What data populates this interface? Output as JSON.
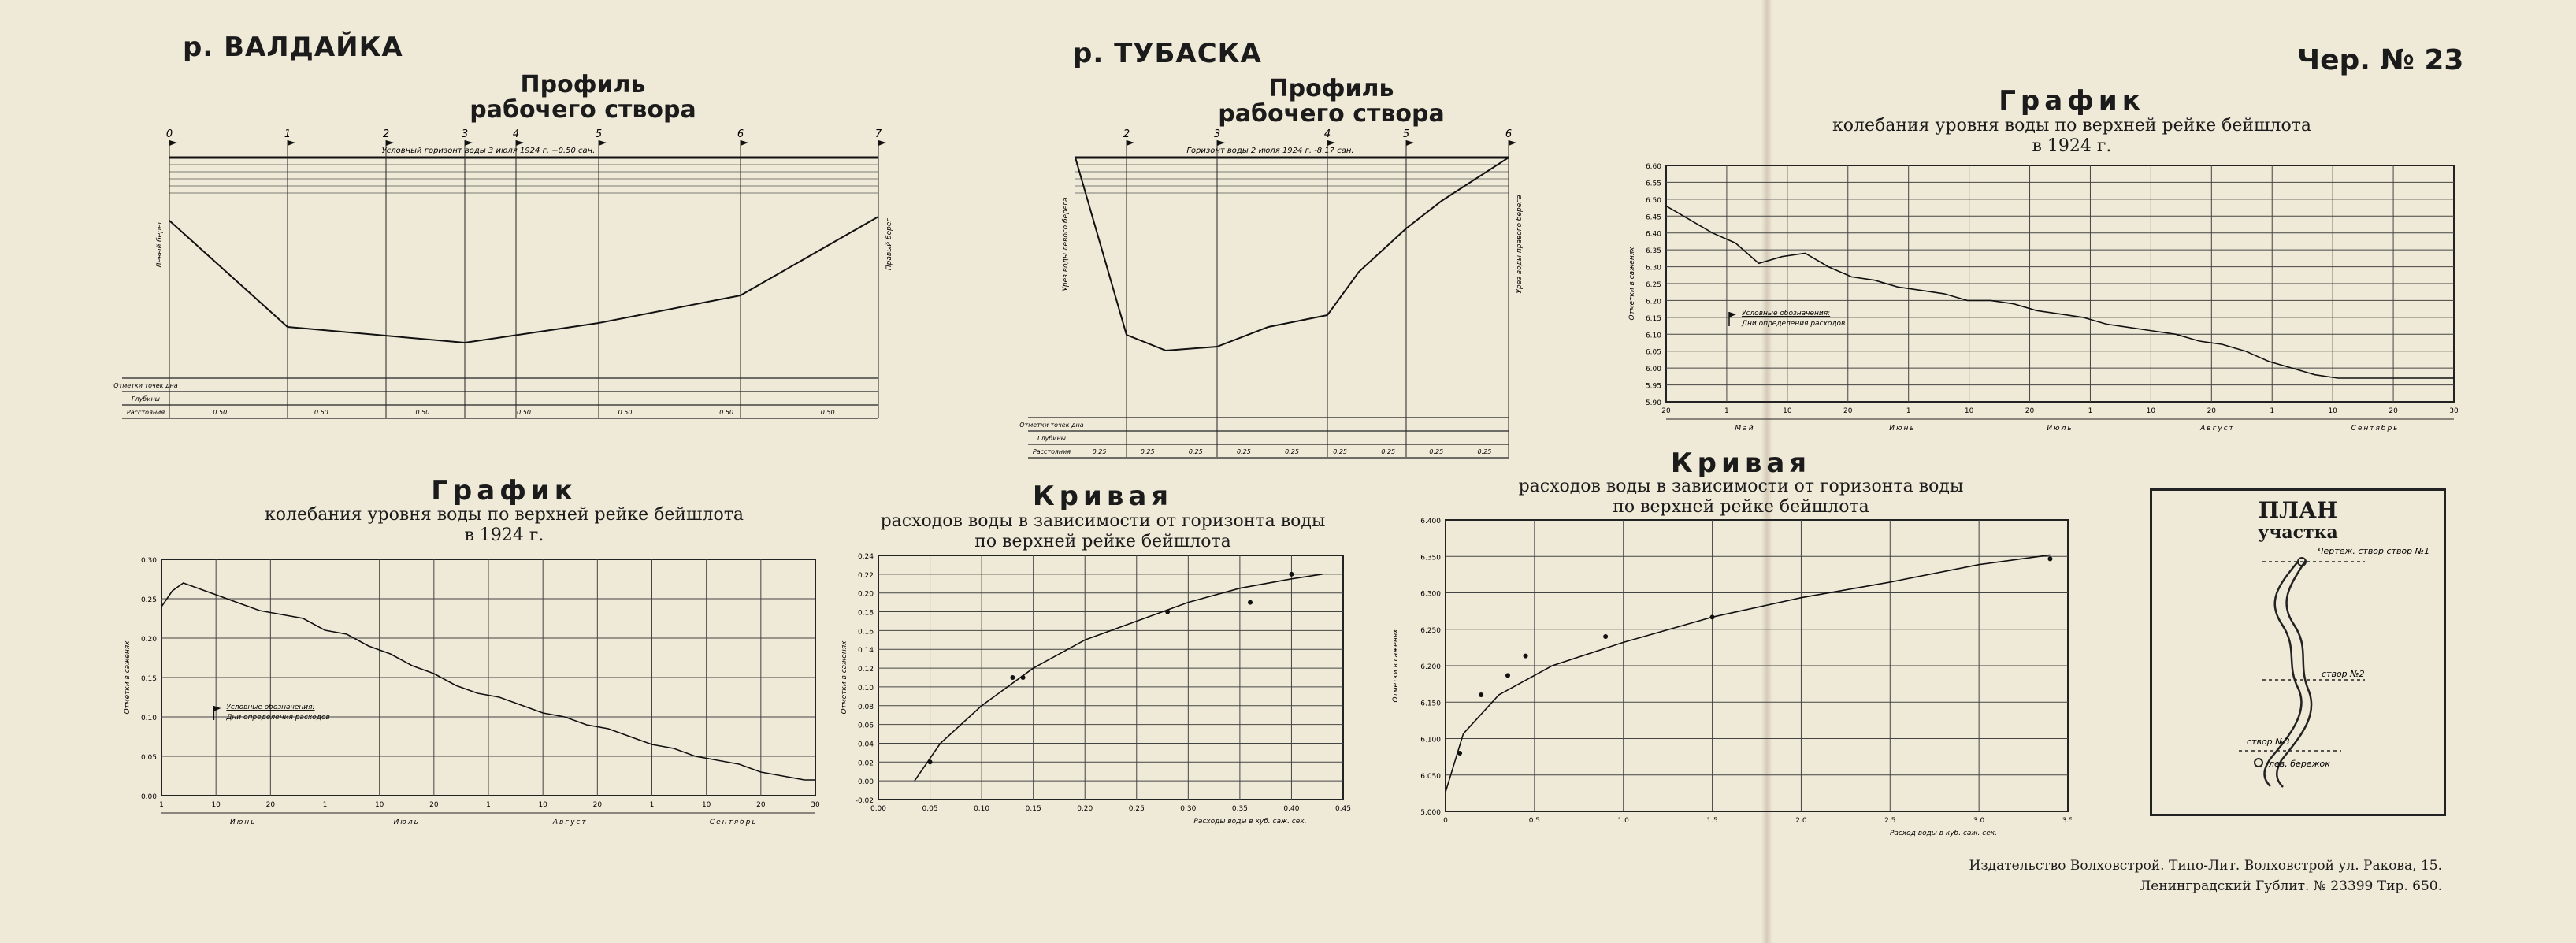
{
  "header": {
    "river_left": "р. ВАЛДАЙКА",
    "river_mid": "р. ТУБАСКА",
    "sheet_no": "Чер. № 23"
  },
  "titles": {
    "profile_word": "Профиль",
    "profile_sub": "рабочего створа",
    "graph_word": "График",
    "graph_sub1": "колебания уровня воды по верхней рейке бейшлота",
    "graph_sub2": "в 1924 г.",
    "curve_word": "Кривая",
    "curve_mid_sub1": "расходов воды в зависимости от горизонта воды",
    "curve_mid_sub2": "по верхней рейке бейшлота",
    "curve_right_sub1": "расходов воды в зависимости от горизонта воды",
    "curve_right_sub2": "по верхней рейке бейшлота"
  },
  "profile_valdaika": {
    "station_labels": [
      "0",
      "1",
      "2",
      "3",
      "4",
      "5",
      "6",
      "7"
    ],
    "water_note": "Условный горизонт воды 3 июля 1924 г. +0.50 сан.",
    "left_bank": "Левый берег",
    "right_bank": "Правый берег",
    "row_labels": [
      "Отметки точек дна",
      "Глубины",
      "Расстояния"
    ],
    "distances": [
      "0.50",
      "0.50",
      "0.50",
      "0.50",
      "0.50",
      "0.50",
      "0.50"
    ]
  },
  "profile_tubaska": {
    "station_labels": [
      "2",
      "3",
      "4",
      "5",
      "6"
    ],
    "water_note": "Горизонт воды 2 июля 1924 г. -8.17 сан.",
    "left_bank": "Урез воды левого берега",
    "right_bank": "Урез воды правого берега",
    "row_labels": [
      "Отметки точек дна",
      "Глубины",
      "Расстояния"
    ],
    "distances": [
      "0.25",
      "0.25",
      "0.25",
      "0.25",
      "0.25",
      "0.25",
      "0.25",
      "0.25",
      "0.25"
    ]
  },
  "chart_data": [
    {
      "type": "line",
      "id": "stage_graph_left",
      "title": "График колебания уровня воды по верхней рейке бейшлота в 1924 г.",
      "ylabel": "Отметки в саженях",
      "ylim": [
        0.0,
        0.3
      ],
      "y_ticks": [
        "0.30",
        "0.25",
        "0.20",
        "0.15",
        "0.10",
        "0.05",
        "0.00"
      ],
      "x_ticks": [
        "1",
        "10",
        "20",
        "1",
        "10",
        "20",
        "1",
        "10",
        "20",
        "1",
        "10",
        "20",
        "30"
      ],
      "months": [
        "Июнь",
        "Июль",
        "Август",
        "Сентябрь"
      ],
      "legend": [
        "Условные обозначения:",
        "Дни определения расходов"
      ],
      "x": [
        0,
        2,
        4,
        6,
        8,
        10,
        14,
        18,
        22,
        26,
        30,
        34,
        38,
        42,
        46,
        50,
        54,
        58,
        62,
        66,
        70,
        74,
        78,
        82,
        86,
        90,
        94,
        98,
        102,
        106,
        110,
        114,
        118,
        120
      ],
      "values": [
        0.24,
        0.26,
        0.27,
        0.265,
        0.26,
        0.255,
        0.245,
        0.235,
        0.23,
        0.225,
        0.21,
        0.205,
        0.19,
        0.18,
        0.165,
        0.155,
        0.14,
        0.13,
        0.125,
        0.115,
        0.105,
        0.1,
        0.09,
        0.085,
        0.075,
        0.065,
        0.06,
        0.05,
        0.045,
        0.04,
        0.03,
        0.025,
        0.02,
        0.02
      ]
    },
    {
      "type": "scatter",
      "id": "rating_curve_mid",
      "title": "Кривая расходов воды в зависимости от горизонта воды по верхней рейке бейшлота",
      "xlabel": "Расходы воды в куб. саж. сек.",
      "ylabel": "Отметки в саженях",
      "xlim": [
        0.0,
        0.45
      ],
      "ylim": [
        -0.02,
        0.24
      ],
      "x_ticks": [
        "0.00",
        "0.05",
        "0.10",
        "0.15",
        "0.20",
        "0.25",
        "0.30",
        "0.35",
        "0.40",
        "0.45"
      ],
      "y_ticks": [
        "0.24",
        "0.22",
        "0.20",
        "0.18",
        "0.16",
        "0.14",
        "0.12",
        "0.10",
        "0.08",
        "0.06",
        "0.04",
        "0.02",
        "0.00",
        "-0.02"
      ],
      "points": [
        [
          0.05,
          0.02
        ],
        [
          0.13,
          0.11
        ],
        [
          0.14,
          0.11
        ],
        [
          0.28,
          0.18
        ],
        [
          0.36,
          0.19
        ],
        [
          0.4,
          0.22
        ]
      ],
      "curve": [
        [
          0.035,
          0.0
        ],
        [
          0.06,
          0.04
        ],
        [
          0.1,
          0.08
        ],
        [
          0.15,
          0.12
        ],
        [
          0.2,
          0.15
        ],
        [
          0.25,
          0.17
        ],
        [
          0.3,
          0.19
        ],
        [
          0.35,
          0.205
        ],
        [
          0.4,
          0.215
        ],
        [
          0.43,
          0.22
        ]
      ]
    },
    {
      "type": "scatter",
      "id": "rating_curve_right",
      "title": "Кривая расходов воды в зависимости от горизонта воды по верхней рейке бейшлота",
      "xlabel": "Расход воды в куб. саж. сек.",
      "ylabel": "Отметки в саженях",
      "xlim": [
        0.0,
        3.5
      ],
      "ylim": [
        4.95,
        6.45
      ],
      "x_ticks": [
        "0",
        "0.5",
        "1.0",
        "1.5",
        "2.0",
        "2.5",
        "3.0",
        "3.5"
      ],
      "y_ticks": [
        "6.400",
        "6.350",
        "6.300",
        "6.250",
        "6.200",
        "6.150",
        "6.100",
        "6.050",
        "5.000"
      ],
      "points": [
        [
          0.08,
          5.25
        ],
        [
          0.2,
          5.55
        ],
        [
          0.35,
          5.65
        ],
        [
          0.45,
          5.75
        ],
        [
          0.9,
          5.85
        ],
        [
          1.5,
          5.95
        ],
        [
          3.4,
          6.25
        ]
      ],
      "curve": [
        [
          0.0,
          5.05
        ],
        [
          0.1,
          5.35
        ],
        [
          0.3,
          5.55
        ],
        [
          0.6,
          5.7
        ],
        [
          1.0,
          5.82
        ],
        [
          1.5,
          5.95
        ],
        [
          2.0,
          6.05
        ],
        [
          2.5,
          6.13
        ],
        [
          3.0,
          6.22
        ],
        [
          3.4,
          6.27
        ]
      ]
    },
    {
      "type": "line",
      "id": "stage_graph_right",
      "title": "График колебания уровня воды по верхней рейке бейшлота в 1924 г.",
      "ylabel": "Отметки в саженях",
      "ylim": [
        5.9,
        6.6
      ],
      "y_ticks": [
        "6.60",
        "6.55",
        "6.50",
        "6.45",
        "6.40",
        "6.35",
        "6.30",
        "6.25",
        "6.20",
        "6.15",
        "6.10",
        "6.05",
        "6.00",
        "5.95",
        "5.90"
      ],
      "x_ticks": [
        "20",
        "1",
        "10",
        "20",
        "1",
        "10",
        "20",
        "1",
        "10",
        "20",
        "1",
        "10",
        "20",
        "30"
      ],
      "months": [
        "Май",
        "Июнь",
        "Июль",
        "Август",
        "Сентябрь"
      ],
      "legend": [
        "Условные обозначения:",
        "Дни определения расходов"
      ],
      "x": [
        0,
        4,
        8,
        12,
        16,
        20,
        24,
        28,
        32,
        36,
        40,
        44,
        48,
        52,
        56,
        60,
        64,
        68,
        72,
        76,
        80,
        84,
        88,
        92,
        96,
        100,
        104,
        108,
        112,
        116,
        120,
        124,
        128,
        132,
        136
      ],
      "values": [
        6.48,
        6.44,
        6.4,
        6.37,
        6.31,
        6.33,
        6.34,
        6.3,
        6.27,
        6.26,
        6.24,
        6.23,
        6.22,
        6.2,
        6.2,
        6.19,
        6.17,
        6.16,
        6.15,
        6.13,
        6.12,
        6.11,
        6.1,
        6.08,
        6.07,
        6.05,
        6.02,
        6.0,
        5.98,
        5.97,
        5.97,
        5.97,
        5.97,
        5.97,
        5.97
      ]
    }
  ],
  "plan": {
    "title": "ПЛАН",
    "subtitle": "участка",
    "labels": [
      "Чертеж. створ створ №1",
      "створ №2",
      "створ №3",
      "лев. бережок"
    ]
  },
  "imprint": {
    "line1": "Издательство Волховстрой. Типо-Лит. Волховстрой ул. Ракова, 15.",
    "line2": "Ленинградский Гублит. № 23399   Тир. 650."
  }
}
